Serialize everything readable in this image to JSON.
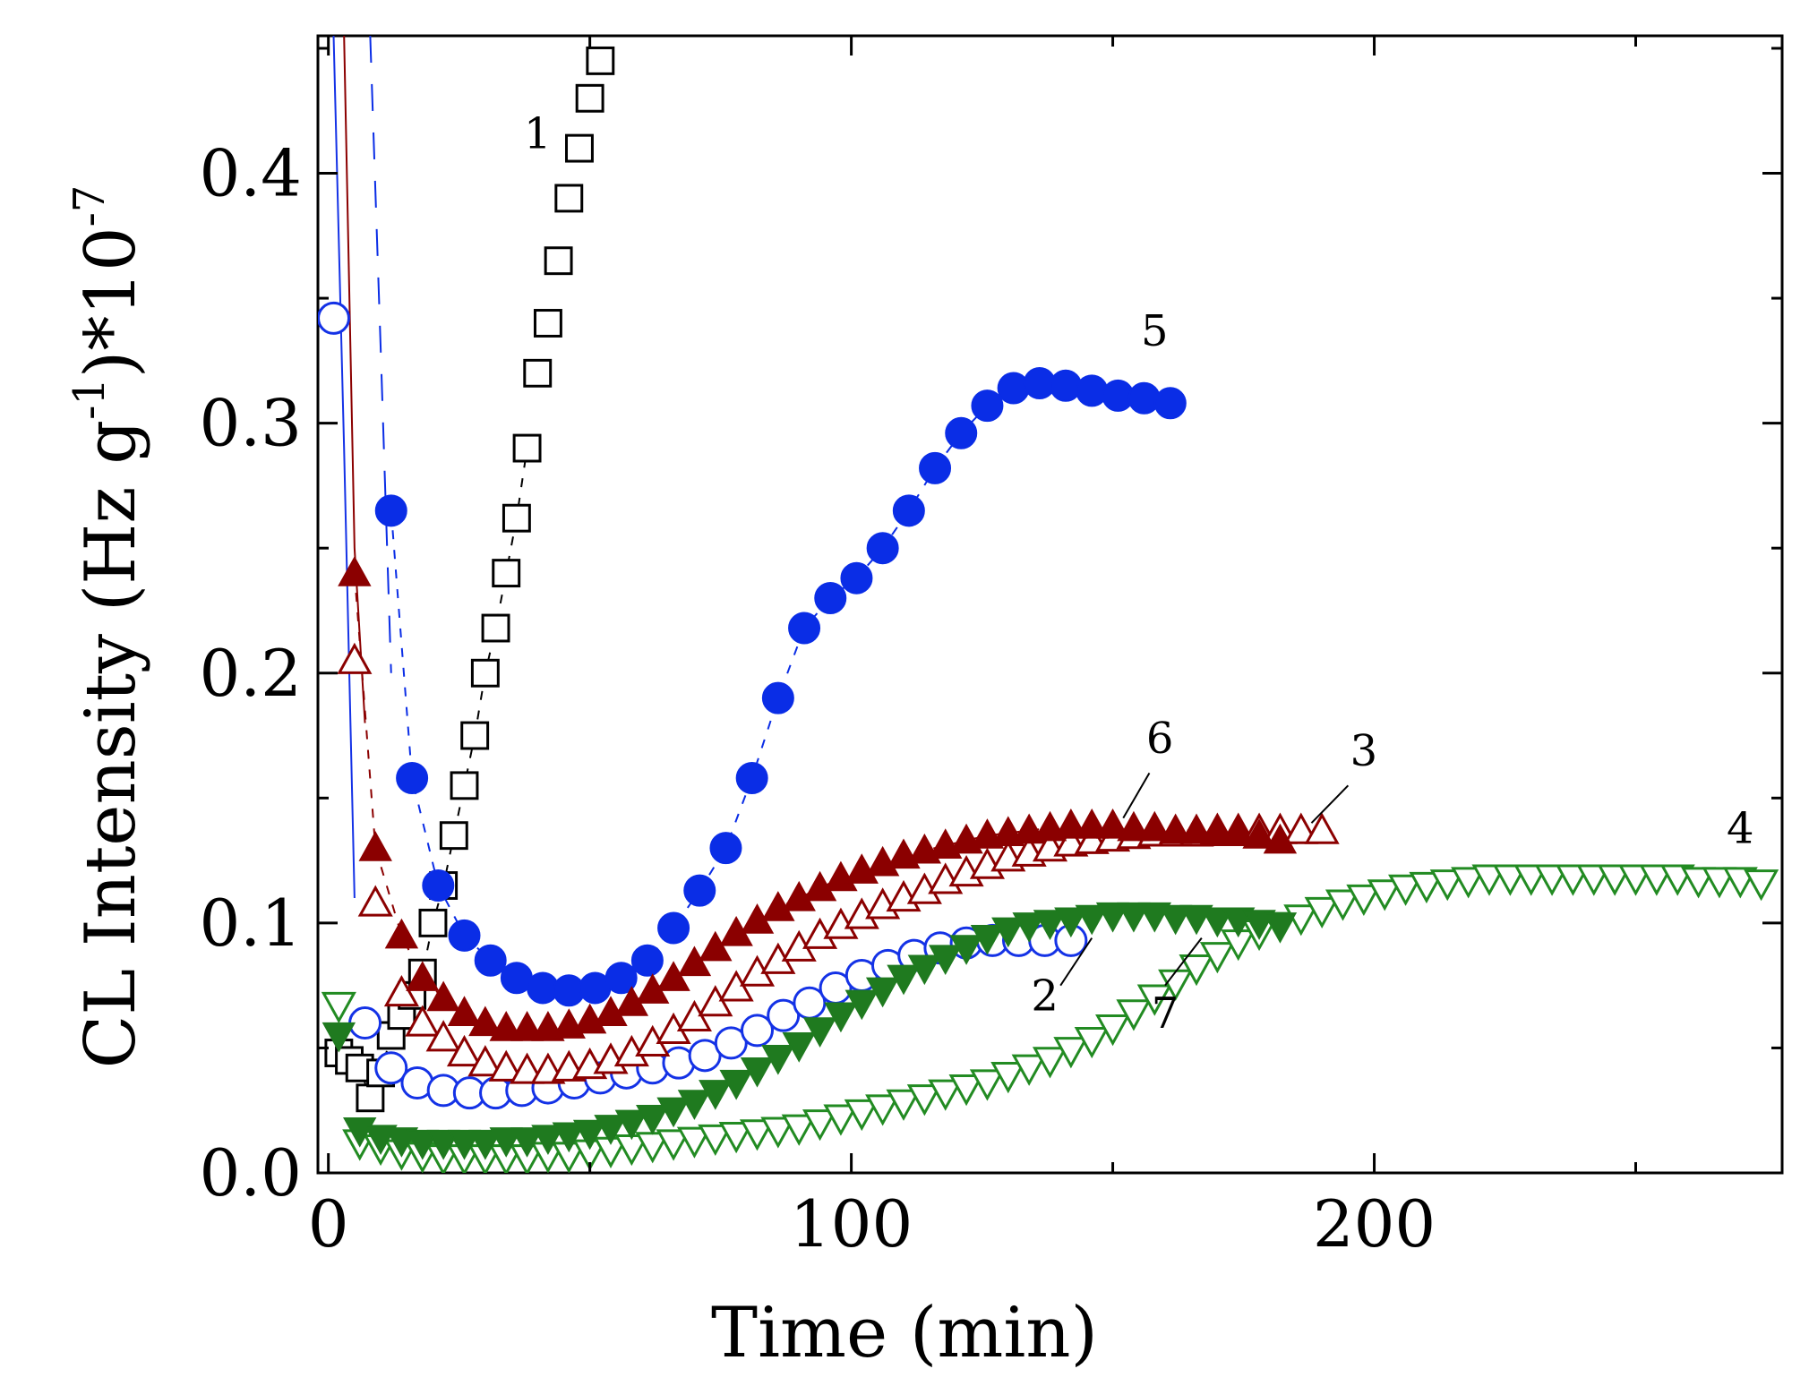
{
  "chart_data": {
    "type": "scatter",
    "title": "",
    "xlabel": "Time (min)",
    "ylabel": "CL Intensity (Hz g",
    "ylabel_sup1": "-1",
    "ylabel_mid": ")*10",
    "ylabel_sup2": "-7",
    "xlim": [
      -2,
      278
    ],
    "ylim": [
      0.0,
      0.455
    ],
    "x_ticks": [
      0,
      100,
      200
    ],
    "y_ticks": [
      0.0,
      0.1,
      0.2,
      0.3,
      0.4
    ],
    "x_tick_labels": [
      "0",
      "100",
      "200"
    ],
    "y_tick_labels": [
      "0.0",
      "0.1",
      "0.2",
      "0.3",
      "0.4"
    ],
    "series": [
      {
        "name": "1",
        "marker": "square-open",
        "color": "#000000",
        "line": "dashed",
        "x": [
          2,
          4,
          6,
          8,
          10,
          12,
          14,
          16,
          18,
          20,
          22,
          24,
          26,
          28,
          30,
          32,
          34,
          36,
          38
        ],
        "y": [
          0.048,
          0.045,
          0.042,
          0.03,
          0.04,
          0.055,
          0.063,
          0.071,
          0.08,
          0.1,
          0.115,
          0.135,
          0.155,
          0.175,
          0.2,
          0.218,
          0.24,
          0.262,
          0.29
        ],
        "label_pos": [
          40,
          0.41
        ]
      },
      {
        "name": "2",
        "marker": "circle-open",
        "color": "#1432e6",
        "line": "none",
        "x": [
          1,
          7,
          12,
          17,
          22,
          27,
          32,
          37,
          42,
          47,
          52,
          57,
          62,
          67,
          72,
          77,
          82,
          87,
          92,
          97,
          102,
          107,
          112,
          117,
          122,
          127,
          132,
          137,
          142
        ],
        "y": [
          0.342,
          0.06,
          0.042,
          0.036,
          0.033,
          0.032,
          0.032,
          0.033,
          0.034,
          0.036,
          0.038,
          0.04,
          0.042,
          0.044,
          0.047,
          0.052,
          0.057,
          0.063,
          0.068,
          0.074,
          0.079,
          0.083,
          0.087,
          0.09,
          0.092,
          0.093,
          0.093,
          0.093,
          0.093
        ],
        "label_pos": [
          137,
          0.065
        ]
      },
      {
        "name": "3",
        "marker": "triangle-up-open",
        "color": "#8b0000",
        "line": "none",
        "x": [
          5,
          9,
          14,
          18,
          22,
          26,
          30,
          34,
          38,
          42,
          46,
          50,
          54,
          58,
          62,
          66,
          70,
          74,
          78,
          82,
          86,
          90,
          94,
          98,
          102,
          106,
          110,
          114,
          118,
          122,
          126,
          130,
          134,
          138,
          142,
          146,
          150,
          154,
          158,
          162,
          166,
          170,
          174,
          178,
          182,
          186,
          190
        ],
        "y": [
          0.205,
          0.108,
          0.072,
          0.06,
          0.054,
          0.048,
          0.044,
          0.042,
          0.041,
          0.041,
          0.042,
          0.043,
          0.045,
          0.048,
          0.052,
          0.057,
          0.062,
          0.068,
          0.074,
          0.08,
          0.085,
          0.09,
          0.095,
          0.099,
          0.103,
          0.107,
          0.11,
          0.113,
          0.117,
          0.12,
          0.123,
          0.126,
          0.128,
          0.13,
          0.132,
          0.133,
          0.134,
          0.135,
          0.136,
          0.136,
          0.136,
          0.137,
          0.137,
          0.137,
          0.137,
          0.137,
          0.137
        ],
        "label_pos": [
          198,
          0.163
        ]
      },
      {
        "name": "4",
        "marker": "triangle-down-open",
        "color": "#228b22",
        "line": "none",
        "x": [
          2,
          6,
          10,
          14,
          18,
          22,
          26,
          30,
          34,
          38,
          42,
          46,
          50,
          54,
          58,
          62,
          66,
          70,
          74,
          78,
          82,
          86,
          90,
          94,
          98,
          102,
          106,
          110,
          114,
          118,
          122,
          126,
          130,
          134,
          138,
          142,
          146,
          150,
          154,
          158,
          162,
          166,
          170,
          174,
          178,
          182,
          186,
          190,
          194,
          198,
          202,
          206,
          210,
          214,
          218,
          222,
          226,
          230,
          234,
          238,
          242,
          246,
          250,
          254,
          258,
          262,
          266,
          270,
          274
        ],
        "y": [
          0.067,
          0.012,
          0.01,
          0.008,
          0.007,
          0.006,
          0.006,
          0.006,
          0.006,
          0.006,
          0.007,
          0.007,
          0.008,
          0.009,
          0.01,
          0.011,
          0.012,
          0.013,
          0.014,
          0.015,
          0.016,
          0.017,
          0.018,
          0.02,
          0.022,
          0.024,
          0.026,
          0.028,
          0.03,
          0.032,
          0.034,
          0.036,
          0.039,
          0.042,
          0.045,
          0.049,
          0.053,
          0.058,
          0.064,
          0.07,
          0.076,
          0.082,
          0.087,
          0.092,
          0.096,
          0.099,
          0.102,
          0.105,
          0.108,
          0.11,
          0.112,
          0.114,
          0.115,
          0.116,
          0.117,
          0.118,
          0.118,
          0.118,
          0.118,
          0.118,
          0.118,
          0.118,
          0.118,
          0.118,
          0.118,
          0.117,
          0.117,
          0.117,
          0.116
        ],
        "label_pos": [
          270,
          0.132
        ]
      },
      {
        "name": "5",
        "marker": "circle-filled",
        "color": "#0a2de6",
        "line": "dashed",
        "x": [
          12,
          16,
          21,
          26,
          31,
          36,
          41,
          46,
          51,
          56,
          61,
          66,
          71,
          76,
          81,
          86,
          91,
          96,
          101,
          106,
          111,
          116,
          121,
          126,
          131,
          136,
          141,
          146,
          151,
          156,
          161
        ],
        "y": [
          0.265,
          0.158,
          0.115,
          0.095,
          0.085,
          0.078,
          0.074,
          0.073,
          0.074,
          0.078,
          0.085,
          0.098,
          0.113,
          0.13,
          0.158,
          0.19,
          0.218,
          0.23,
          0.238,
          0.25,
          0.265,
          0.282,
          0.296,
          0.307,
          0.314,
          0.316,
          0.315,
          0.313,
          0.311,
          0.31,
          0.308
        ],
        "label_pos": [
          158,
          0.331
        ]
      },
      {
        "name": "6",
        "marker": "triangle-up-filled",
        "color": "#8b0000",
        "line": "dashed",
        "x": [
          5,
          9,
          14,
          18,
          22,
          26,
          30,
          34,
          38,
          42,
          46,
          50,
          54,
          58,
          62,
          66,
          70,
          74,
          78,
          82,
          86,
          90,
          94,
          98,
          102,
          106,
          110,
          114,
          118,
          122,
          126,
          130,
          134,
          138,
          142,
          146,
          150,
          154,
          158,
          162,
          166,
          170,
          174,
          178,
          182
        ],
        "y": [
          0.24,
          0.13,
          0.095,
          0.078,
          0.07,
          0.064,
          0.06,
          0.058,
          0.058,
          0.058,
          0.059,
          0.061,
          0.064,
          0.068,
          0.073,
          0.078,
          0.084,
          0.09,
          0.096,
          0.101,
          0.106,
          0.11,
          0.114,
          0.118,
          0.121,
          0.124,
          0.127,
          0.129,
          0.131,
          0.133,
          0.135,
          0.136,
          0.137,
          0.138,
          0.139,
          0.139,
          0.139,
          0.138,
          0.138,
          0.137,
          0.137,
          0.136,
          0.136,
          0.135,
          0.133
        ],
        "label_pos": [
          159,
          0.168
        ]
      },
      {
        "name": "7",
        "marker": "triangle-down-filled",
        "color": "#1f7a1f",
        "line": "none",
        "x": [
          2,
          6,
          10,
          14,
          18,
          22,
          26,
          30,
          34,
          38,
          42,
          46,
          50,
          54,
          58,
          62,
          66,
          70,
          74,
          78,
          82,
          86,
          90,
          94,
          98,
          102,
          106,
          110,
          114,
          118,
          122,
          126,
          130,
          134,
          138,
          142,
          146,
          150,
          154,
          158,
          162,
          166,
          170,
          174,
          178,
          182
        ],
        "y": [
          0.055,
          0.017,
          0.014,
          0.013,
          0.012,
          0.012,
          0.012,
          0.012,
          0.013,
          0.013,
          0.014,
          0.015,
          0.016,
          0.018,
          0.02,
          0.022,
          0.025,
          0.028,
          0.032,
          0.036,
          0.041,
          0.046,
          0.051,
          0.057,
          0.063,
          0.068,
          0.073,
          0.078,
          0.082,
          0.086,
          0.09,
          0.094,
          0.097,
          0.099,
          0.1,
          0.101,
          0.102,
          0.103,
          0.103,
          0.103,
          0.102,
          0.102,
          0.101,
          0.101,
          0.1,
          0.099
        ],
        "label_pos": [
          160,
          0.058
        ]
      }
    ]
  }
}
